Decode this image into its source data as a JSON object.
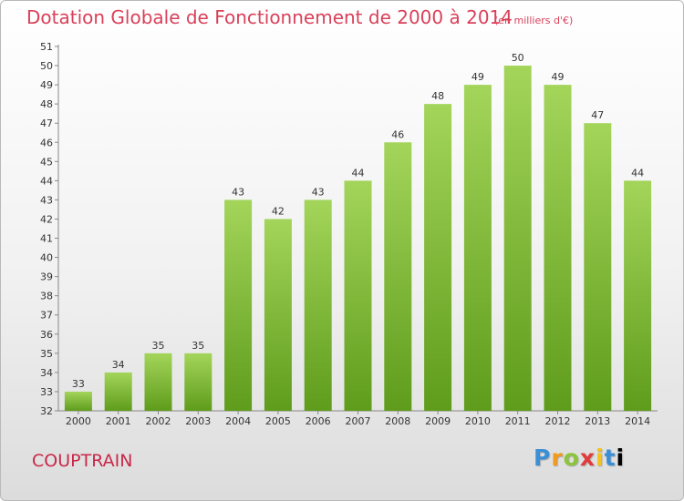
{
  "chart_data": {
    "type": "bar",
    "title": "Dotation Globale de Fonctionnement de 2000 à 2014",
    "subtitle": "(en milliers d'€)",
    "categories": [
      "2000",
      "2001",
      "2002",
      "2003",
      "2004",
      "2005",
      "2006",
      "2007",
      "2008",
      "2009",
      "2010",
      "2011",
      "2012",
      "2013",
      "2014"
    ],
    "values": [
      33,
      34,
      35,
      35,
      43,
      42,
      43,
      44,
      46,
      48,
      49,
      50,
      49,
      47,
      44
    ],
    "data_labels": [
      "33",
      "34",
      "35",
      "35",
      "43",
      "42",
      "43",
      "44",
      "46",
      "48",
      "49",
      "50",
      "49",
      "47",
      "44"
    ],
    "y_ticks": [
      "32",
      "33",
      "34",
      "35",
      "36",
      "37",
      "38",
      "39",
      "40",
      "41",
      "42",
      "43",
      "44",
      "45",
      "46",
      "47",
      "48",
      "49",
      "50",
      "51"
    ],
    "ylim": [
      32,
      51
    ],
    "grid": false,
    "xlabel": "",
    "ylabel": "",
    "bar_color_top": "#a3d55a",
    "bar_color_bottom": "#5f9c1c"
  },
  "location_label": "COUPTRAIN",
  "logo": {
    "letters": [
      "P",
      "r",
      "o",
      "x",
      "i",
      "t",
      "i"
    ]
  }
}
